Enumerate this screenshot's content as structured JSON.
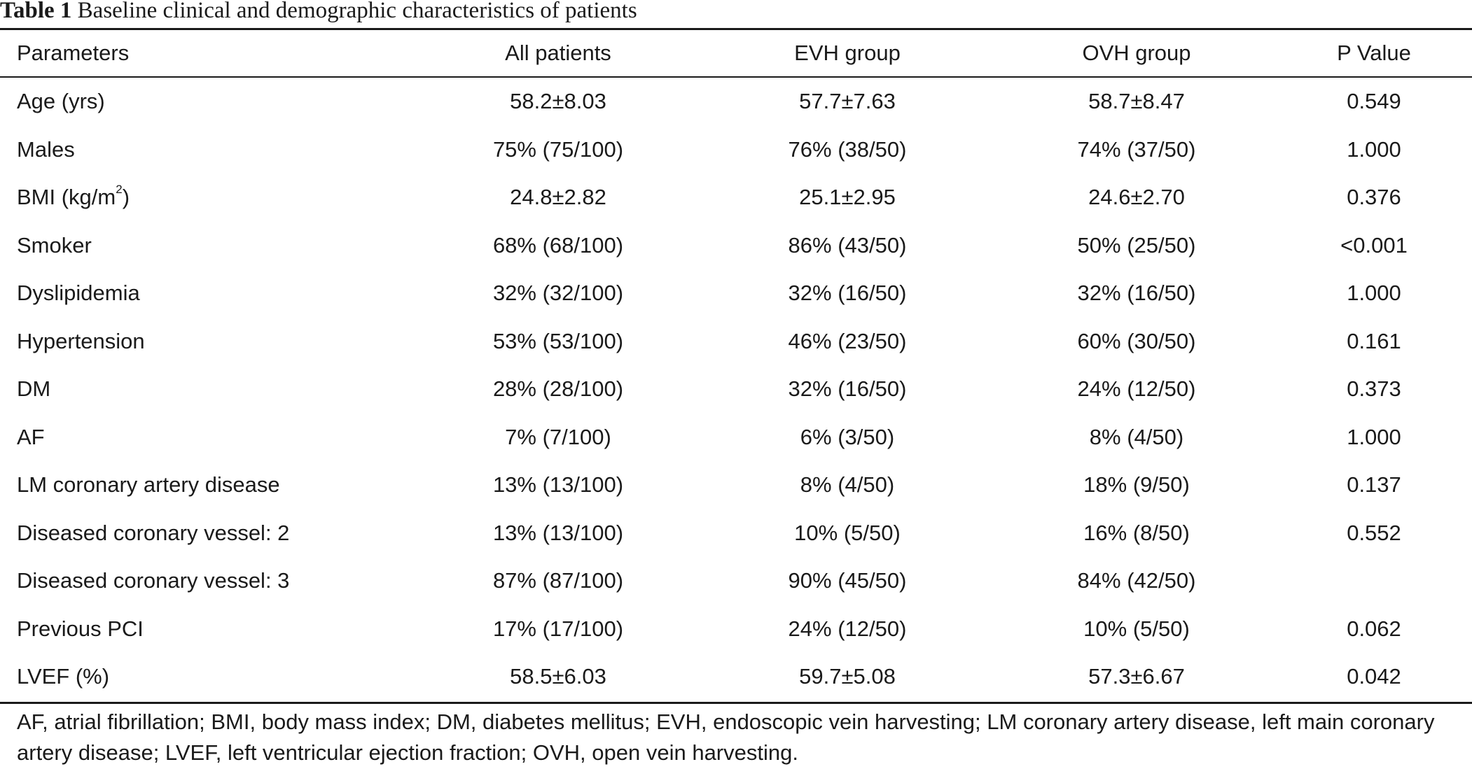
{
  "table": {
    "caption_label": "Table 1",
    "caption_text": "Baseline clinical and demographic characteristics of patients",
    "columns": [
      "Parameters",
      "All patients",
      "EVH group",
      "OVH group",
      "P Value"
    ],
    "rows": [
      {
        "parameter": "Age (yrs)",
        "all": "58.2±8.03",
        "evh": "57.7±7.63",
        "ovh": "58.7±8.47",
        "p": "0.549"
      },
      {
        "parameter": "Males",
        "all": "75% (75/100)",
        "evh": "76% (38/50)",
        "ovh": "74% (37/50)",
        "p": "1.000"
      },
      {
        "parameter": "BMI (kg/m",
        "parameter_sup": "2",
        "parameter_suffix": ")",
        "all": "24.8±2.82",
        "evh": "25.1±2.95",
        "ovh": "24.6±2.70",
        "p": "0.376"
      },
      {
        "parameter": "Smoker",
        "all": "68% (68/100)",
        "evh": "86% (43/50)",
        "ovh": "50% (25/50)",
        "p": "<0.001"
      },
      {
        "parameter": "Dyslipidemia",
        "all": "32% (32/100)",
        "evh": "32% (16/50)",
        "ovh": "32% (16/50)",
        "p": "1.000"
      },
      {
        "parameter": "Hypertension",
        "all": "53% (53/100)",
        "evh": "46% (23/50)",
        "ovh": "60% (30/50)",
        "p": "0.161"
      },
      {
        "parameter": "DM",
        "all": "28% (28/100)",
        "evh": "32% (16/50)",
        "ovh": "24% (12/50)",
        "p": "0.373"
      },
      {
        "parameter": "AF",
        "all": "7% (7/100)",
        "evh": "6% (3/50)",
        "ovh": "8% (4/50)",
        "p": "1.000"
      },
      {
        "parameter": "LM coronary artery disease",
        "all": "13% (13/100)",
        "evh": "8% (4/50)",
        "ovh": "18% (9/50)",
        "p": "0.137"
      },
      {
        "parameter": "Diseased coronary vessel: 2",
        "all": "13% (13/100)",
        "evh": "10% (5/50)",
        "ovh": "16% (8/50)",
        "p": "0.552"
      },
      {
        "parameter": "Diseased coronary vessel: 3",
        "all": "87% (87/100)",
        "evh": "90% (45/50)",
        "ovh": "84% (42/50)",
        "p": ""
      },
      {
        "parameter": "Previous PCI",
        "all": "17% (17/100)",
        "evh": "24% (12/50)",
        "ovh": "10% (5/50)",
        "p": "0.062"
      },
      {
        "parameter": "LVEF (%)",
        "all": "58.5±6.03",
        "evh": "59.7±5.08",
        "ovh": "57.3±6.67",
        "p": "0.042"
      }
    ],
    "footnote": "AF, atrial fibrillation; BMI, body mass index; DM, diabetes mellitus; EVH, endoscopic vein harvesting; LM coronary artery disease, left main coronary artery disease; LVEF, left ventricular ejection fraction; OVH, open vein harvesting."
  }
}
